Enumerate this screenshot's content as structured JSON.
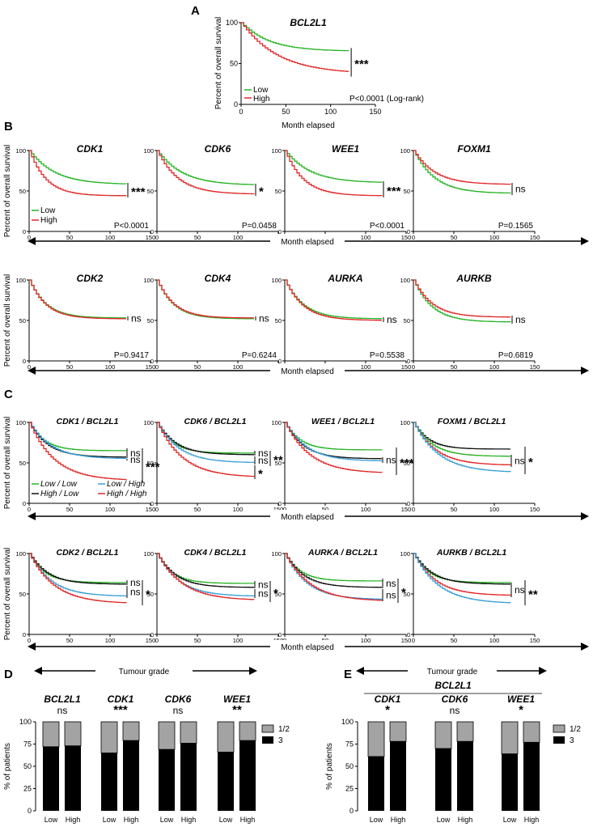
{
  "colors": {
    "low": "#27b327",
    "high": "#e02828",
    "low_low": "#27b327",
    "high_low": "#111111",
    "low_high": "#3aa0d8",
    "high_high": "#e02828",
    "bar_dark": "#000000",
    "bar_light": "#a3a3a3"
  },
  "common": {
    "y_label": "Percent of overall survival",
    "x_label": "Month elapsed",
    "patients_label": "% of patients",
    "tumour_grade": "Tumour grade"
  },
  "panels": {
    "A": "A",
    "B": "B",
    "C": "C",
    "D": "D",
    "E": "E"
  },
  "chart_data": [
    {
      "id": "A",
      "type": "line",
      "title": "BCL2L1",
      "xlim": [
        0,
        150
      ],
      "ylim": [
        0,
        100
      ],
      "xticks": [
        "0",
        "50",
        "100",
        "150"
      ],
      "yticks": [
        "0",
        "50",
        "100"
      ],
      "series": [
        {
          "name": "Low",
          "color": "green",
          "end_x": 120,
          "end_y": 65
        },
        {
          "name": "High",
          "color": "red",
          "end_x": 120,
          "end_y": 37
        }
      ],
      "legend": [
        "Low",
        "High"
      ],
      "pvalue": "P<0.0001 (Log-rank)",
      "significance": [
        "***"
      ]
    },
    {
      "id": "B-CDK1",
      "type": "line",
      "title": "CDK1",
      "series": [
        {
          "name": "Low",
          "end_y": 58
        },
        {
          "name": "High",
          "end_y": 44
        }
      ],
      "pvalue": "P<0.0001",
      "significance": [
        "***"
      ],
      "legend": [
        "Low",
        "High"
      ],
      "xticks": [
        "0",
        "50",
        "100",
        "150"
      ],
      "yticks": [
        "0",
        "50",
        "100"
      ]
    },
    {
      "id": "B-CDK6",
      "type": "line",
      "title": "CDK6",
      "series": [
        {
          "name": "Low",
          "end_y": 57
        },
        {
          "name": "High",
          "end_y": 46
        }
      ],
      "pvalue": "P=0.0458",
      "significance": [
        "*"
      ],
      "xticks": [
        "0",
        "50",
        "100",
        "150"
      ],
      "yticks": [
        "0",
        "50",
        "100"
      ]
    },
    {
      "id": "B-WEE1",
      "type": "line",
      "title": "WEE1",
      "series": [
        {
          "name": "Low",
          "end_y": 60
        },
        {
          "name": "High",
          "end_y": 44
        }
      ],
      "pvalue": "P<0.0001",
      "significance": [
        "***"
      ],
      "xticks": [
        "0",
        "50",
        "100",
        "150"
      ],
      "yticks": [
        "0",
        "50",
        "100"
      ]
    },
    {
      "id": "B-FOXM1",
      "type": "line",
      "title": "FOXM1",
      "series": [
        {
          "name": "Low",
          "end_y": 47
        },
        {
          "name": "High",
          "end_y": 58
        }
      ],
      "pvalue": "P=0.1565",
      "significance": [
        "ns"
      ],
      "xticks": [
        "0",
        "50",
        "100",
        "150"
      ],
      "yticks": [
        "0",
        "50",
        "100"
      ]
    },
    {
      "id": "B-CDK2",
      "type": "line",
      "title": "CDK2",
      "series": [
        {
          "name": "Low",
          "end_y": 53
        },
        {
          "name": "High",
          "end_y": 52
        }
      ],
      "pvalue": "P=0.9417",
      "significance": [
        "ns"
      ],
      "xticks": [
        "0",
        "50",
        "100",
        "150"
      ],
      "yticks": [
        "0",
        "50",
        "100"
      ]
    },
    {
      "id": "B-CDK4",
      "type": "line",
      "title": "CDK4",
      "series": [
        {
          "name": "Low",
          "end_y": 52
        },
        {
          "name": "High",
          "end_y": 53
        }
      ],
      "pvalue": "P=0.6244",
      "significance": [
        "ns"
      ],
      "xticks": [
        "0",
        "50",
        "100",
        "150"
      ],
      "yticks": [
        "0",
        "50",
        "100"
      ]
    },
    {
      "id": "B-AURKA",
      "type": "line",
      "title": "AURKA",
      "series": [
        {
          "name": "Low",
          "end_y": 52
        },
        {
          "name": "High",
          "end_y": 50
        }
      ],
      "pvalue": "P=0.5538",
      "significance": [
        "ns"
      ],
      "xticks": [
        "0",
        "50",
        "100",
        "150"
      ],
      "yticks": [
        "0",
        "50",
        "100"
      ]
    },
    {
      "id": "B-AURKB",
      "type": "line",
      "title": "AURKB",
      "series": [
        {
          "name": "Low",
          "end_y": 48
        },
        {
          "name": "High",
          "end_y": 54
        }
      ],
      "pvalue": "P=0.6819",
      "significance": [
        "ns"
      ],
      "xticks": [
        "0",
        "50",
        "100",
        "150"
      ],
      "yticks": [
        "0",
        "50",
        "100"
      ]
    },
    {
      "id": "C-CDK1",
      "type": "line",
      "title": "CDK1 / BCL2L1",
      "legend": [
        "Low / Low",
        "Low / High",
        "High / Low",
        "High / High"
      ],
      "series": [
        {
          "name": "Low / Low",
          "end_y": 65
        },
        {
          "name": "High / Low",
          "end_y": 57
        },
        {
          "name": "Low / High",
          "end_y": 55
        },
        {
          "name": "High / High",
          "end_y": 28
        }
      ],
      "significance": [
        "ns",
        "ns",
        "***"
      ],
      "xticks": [
        "0",
        "50",
        "100",
        "150"
      ],
      "yticks": [
        "0",
        "50",
        "100"
      ]
    },
    {
      "id": "C-CDK6",
      "type": "line",
      "title": "CDK6 / BCL2L1",
      "series": [
        {
          "name": "Low / Low",
          "end_y": 62
        },
        {
          "name": "High / Low",
          "end_y": 60
        },
        {
          "name": "Low / High",
          "end_y": 50
        },
        {
          "name": "High / High",
          "end_y": 32
        }
      ],
      "significance": [
        "ns",
        "ns",
        "*",
        "**"
      ],
      "xticks": [
        "0",
        "50",
        "100",
        "150"
      ],
      "yticks": [
        "0",
        "50",
        "100"
      ]
    },
    {
      "id": "C-WEE1",
      "type": "line",
      "title": "WEE1 / BCL2L1",
      "series": [
        {
          "name": "Low / Low",
          "end_y": 66
        },
        {
          "name": "High / Low",
          "end_y": 55
        },
        {
          "name": "Low / High",
          "end_y": 52
        },
        {
          "name": "High / High",
          "end_y": 37
        }
      ],
      "significance": [
        "ns",
        "***"
      ],
      "xticks": [
        "0",
        "50",
        "100",
        "150"
      ],
      "yticks": [
        "0",
        "50",
        "100"
      ]
    },
    {
      "id": "C-FOXM1",
      "type": "line",
      "title": "FOXM1 / BCL2L1",
      "series": [
        {
          "name": "High / Low",
          "end_y": 67
        },
        {
          "name": "Low / Low",
          "end_y": 58
        },
        {
          "name": "High / High",
          "end_y": 47
        },
        {
          "name": "Low / High",
          "end_y": 38
        }
      ],
      "significance": [
        "ns",
        "*"
      ],
      "xticks": [
        "0",
        "50",
        "100",
        "150"
      ],
      "yticks": [
        "0",
        "50",
        "100"
      ]
    },
    {
      "id": "C-CDK2",
      "type": "line",
      "title": "CDK2 / BCL2L1",
      "series": [
        {
          "name": "Low / Low",
          "end_y": 64
        },
        {
          "name": "High / Low",
          "end_y": 62
        },
        {
          "name": "Low / High",
          "end_y": 47
        },
        {
          "name": "High / High",
          "end_y": 38
        }
      ],
      "significance": [
        "ns",
        "ns",
        "*"
      ],
      "xticks": [
        "0",
        "50",
        "100",
        "150"
      ],
      "yticks": [
        "0",
        "50",
        "100"
      ]
    },
    {
      "id": "C-CDK4",
      "type": "line",
      "title": "CDK4 / BCL2L1",
      "series": [
        {
          "name": "Low / Low",
          "end_y": 63
        },
        {
          "name": "High / Low",
          "end_y": 58
        },
        {
          "name": "Low / High",
          "end_y": 47
        },
        {
          "name": "High / High",
          "end_y": 42
        }
      ],
      "significance": [
        "ns",
        "ns",
        "*"
      ],
      "xticks": [
        "0",
        "50",
        "100",
        "150"
      ],
      "yticks": [
        "0",
        "50",
        "100"
      ]
    },
    {
      "id": "C-AURKA",
      "type": "line",
      "title": "AURKA / BCL2L1",
      "series": [
        {
          "name": "Low / Low",
          "end_y": 66
        },
        {
          "name": "High / Low",
          "end_y": 58
        },
        {
          "name": "Low / High",
          "end_y": 43
        },
        {
          "name": "High / High",
          "end_y": 41
        }
      ],
      "significance": [
        "ns",
        "ns",
        "*"
      ],
      "xticks": [
        "0",
        "50",
        "100",
        "150"
      ],
      "yticks": [
        "0",
        "50",
        "100"
      ]
    },
    {
      "id": "C-AURKB",
      "type": "line",
      "title": "AURKB / BCL2L1",
      "series": [
        {
          "name": "Low / Low",
          "end_y": 64
        },
        {
          "name": "High / Low",
          "end_y": 62
        },
        {
          "name": "High / High",
          "end_y": 48
        },
        {
          "name": "Low / High",
          "end_y": 38
        }
      ],
      "significance": [
        "ns",
        "**"
      ],
      "xticks": [
        "0",
        "50",
        "100",
        "150"
      ],
      "yticks": [
        "0",
        "50",
        "100"
      ]
    },
    {
      "id": "D",
      "type": "bar",
      "stacked": true,
      "ylim": [
        0,
        100
      ],
      "yticks": [
        "0",
        "25",
        "50",
        "75",
        "100"
      ],
      "ylabel": "% of patients",
      "legend": [
        "1/2",
        "3"
      ],
      "groups": [
        {
          "gene": "BCL2L1",
          "sig": "ns",
          "low": 72,
          "high": 73
        },
        {
          "gene": "CDK1",
          "sig": "***",
          "low": 65,
          "high": 79
        },
        {
          "gene": "CDK6",
          "sig": "ns",
          "low": 69,
          "high": 76
        },
        {
          "gene": "WEE1",
          "sig": "**",
          "low": 66,
          "high": 79
        }
      ],
      "categories": [
        "Low",
        "High"
      ]
    },
    {
      "id": "E",
      "type": "bar",
      "stacked": true,
      "ylim": [
        0,
        100
      ],
      "yticks": [
        "0",
        "25",
        "50",
        "75",
        "100"
      ],
      "ylabel": "% of patients",
      "legend": [
        "1/2",
        "3"
      ],
      "header": "BCL2L1",
      "groups": [
        {
          "gene": "CDK1",
          "sig": "*",
          "low": 61,
          "high": 78
        },
        {
          "gene": "CDK6",
          "sig": "ns",
          "low": 70,
          "high": 78
        },
        {
          "gene": "WEE1",
          "sig": "*",
          "low": 64,
          "high": 77
        }
      ],
      "categories": [
        "Low",
        "High"
      ]
    }
  ]
}
